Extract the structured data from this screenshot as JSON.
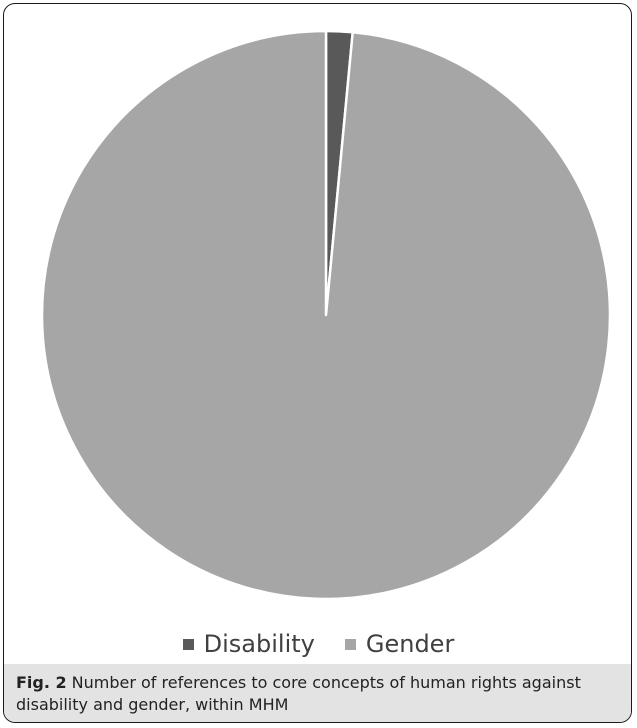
{
  "chart_data": {
    "type": "pie",
    "categories": [
      "Disability",
      "Gender"
    ],
    "values": [
      1.5,
      98.5
    ],
    "colors": [
      "#595959",
      "#a6a6a6"
    ],
    "start_angle_deg": 0,
    "direction": "clockwise",
    "slice_separator_color": "#ffffff",
    "legend_position": "bottom",
    "title": ""
  },
  "legend": {
    "items": [
      {
        "label": "Disability",
        "color": "#595959"
      },
      {
        "label": "Gender",
        "color": "#a6a6a6"
      }
    ]
  },
  "caption": {
    "label": "Fig. 2",
    "text": "Number of references to core concepts of human rights against disability and gender, within MHM"
  }
}
